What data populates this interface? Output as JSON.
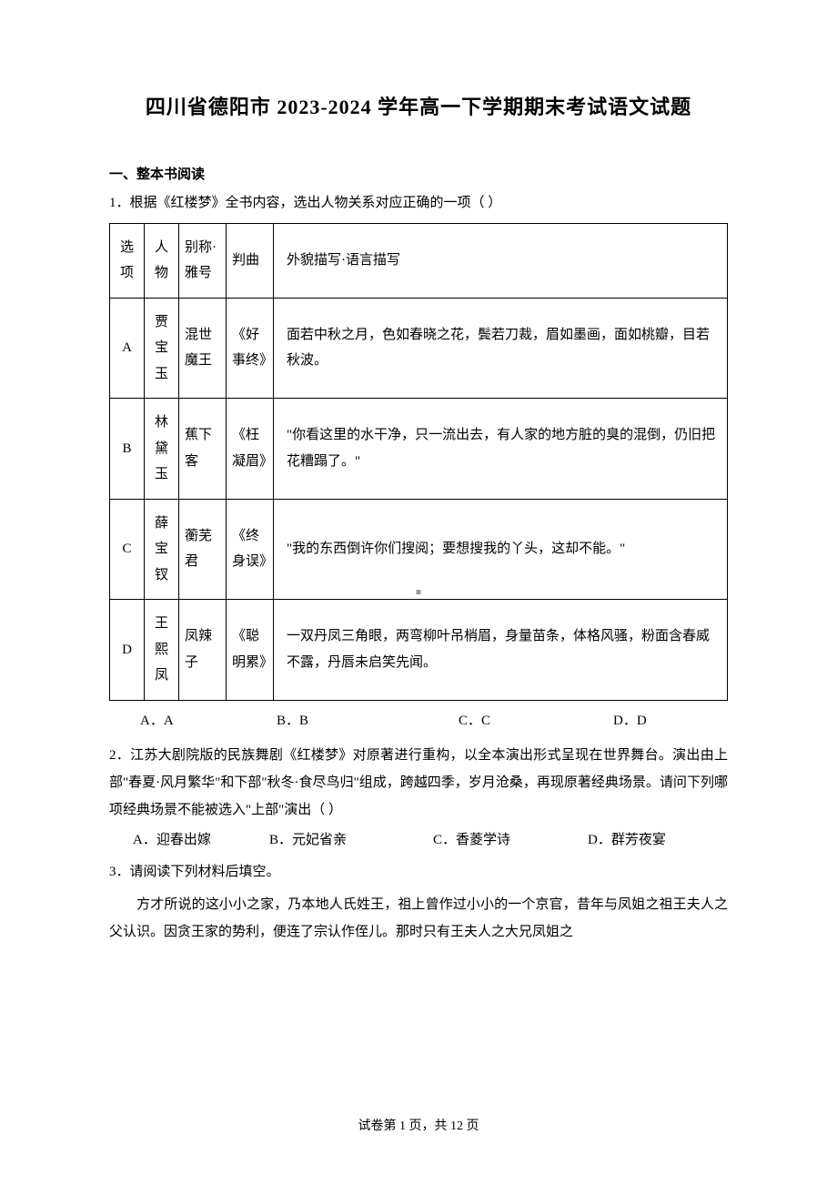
{
  "title": "四川省德阳市 2023-2024 学年高一下学期期末考试语文试题",
  "section1": {
    "header": "一、整本书阅读",
    "q1": {
      "stem": "1．根据《红楼梦》全书内容，选出人物关系对应正确的一项（   ）",
      "table": {
        "header": {
          "c1": "选项",
          "c2": "人物",
          "c3": "别称·雅号",
          "c4": "判曲",
          "c5": "外貌描写·语言描写"
        },
        "rows": [
          {
            "c1": "A",
            "c2": "贾宝玉",
            "c3": "混世魔王",
            "c4": "《好事终》",
            "c5": "面若中秋之月，色如春晓之花，鬓若刀裁，眉如墨画，面如桃瓣，目若秋波。"
          },
          {
            "c1": "B",
            "c2": "林黛玉",
            "c3": "蕉下客",
            "c4": "《枉凝眉》",
            "c5": "\"你看这里的水干净，只一流出去，有人家的地方脏的臭的混倒，仍旧把花糟蹋了。\""
          },
          {
            "c1": "C",
            "c2": "薛宝钗",
            "c3": "蘅芜君",
            "c4": "《终身误》",
            "c5": "\"我的东西倒许你们搜阅；要想搜我的丫头，这却不能。\""
          },
          {
            "c1": "D",
            "c2": "王熙凤",
            "c3": "凤辣子",
            "c4": "《聪明累》",
            "c5": "一双丹凤三角眼，两弯柳叶吊梢眉，身量苗条，体格风骚，粉面含春威不露，丹唇未启笑先闻。"
          }
        ]
      },
      "options": {
        "A": "A．A",
        "B": "B．B",
        "C": "C．C",
        "D": "D．D"
      }
    },
    "q2": {
      "stem": "2．江苏大剧院版的民族舞剧《红楼梦》对原著进行重构，以全本演出形式呈现在世界舞台。演出由上部\"春夏·风月繁华\"和下部\"秋冬·食尽鸟归\"组成，跨越四季，岁月沧桑，再现原著经典场景。请问下列哪项经典场景不能被选入\"上部\"演出（   ）",
      "options": {
        "A": "A．迎春出嫁",
        "B": "B．元妃省亲",
        "C": "C．香菱学诗",
        "D": "D．群芳夜宴"
      }
    },
    "q3": {
      "stem": "3．请阅读下列材料后填空。",
      "para": "方才所说的这小小之家，乃本地人氏姓王，祖上曾作过小小的一个京官，昔年与凤姐之祖王夫人之父认识。因贪王家的势利，便连了宗认作侄儿。那时只有王夫人之大兄凤姐之"
    }
  },
  "footer": "试卷第 1 页，共 12 页"
}
